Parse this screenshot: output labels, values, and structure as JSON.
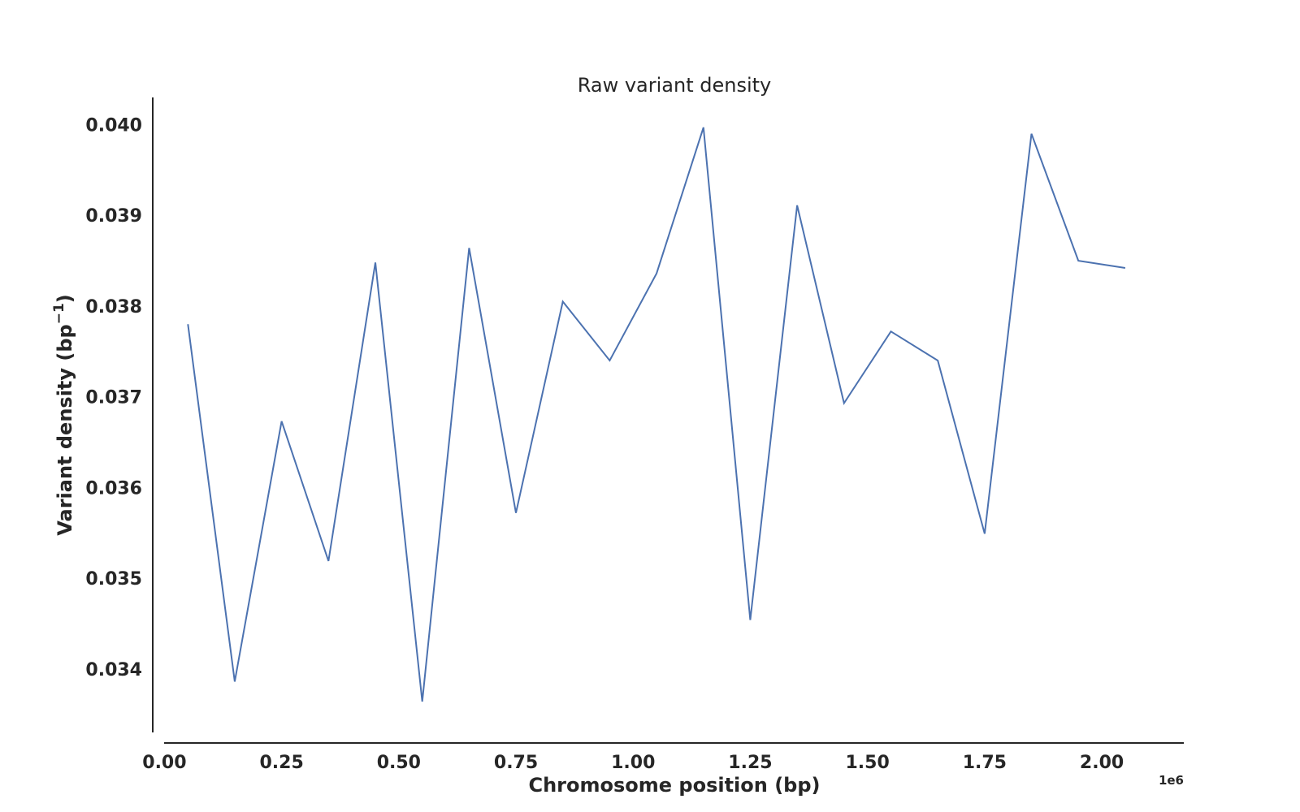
{
  "chart_data": {
    "type": "line",
    "title": "Raw variant density",
    "xlabel": "Chromosome position (bp)",
    "ylabel_main": "Variant density (bp",
    "ylabel_sup": "−1",
    "ylabel_close": ")",
    "x_offset_label": "1e6",
    "xlim": [
      -0.025,
      2.175
    ],
    "ylim": [
      0.0333,
      0.0403
    ],
    "x_ticks": [
      0.0,
      0.25,
      0.5,
      0.75,
      1.0,
      1.25,
      1.5,
      1.75,
      2.0
    ],
    "x_tick_labels": [
      "0.00",
      "0.25",
      "0.50",
      "0.75",
      "1.00",
      "1.25",
      "1.50",
      "1.75",
      "2.00"
    ],
    "y_ticks": [
      0.034,
      0.035,
      0.036,
      0.037,
      0.038,
      0.039,
      0.04
    ],
    "y_tick_labels": [
      "0.034",
      "0.035",
      "0.036",
      "0.037",
      "0.038",
      "0.039",
      "0.040"
    ],
    "grid": false,
    "series": [
      {
        "color": "#4c72b0",
        "x": [
          0.05,
          0.15,
          0.25,
          0.35,
          0.45,
          0.55,
          0.65,
          0.75,
          0.85,
          0.95,
          1.05,
          1.15,
          1.25,
          1.35,
          1.45,
          1.55,
          1.65,
          1.75,
          1.85,
          1.95,
          2.05
        ],
        "y": [
          0.0378,
          0.03386,
          0.03673,
          0.03519,
          0.03848,
          0.03364,
          0.03864,
          0.03572,
          0.03805,
          0.0374,
          0.03836,
          0.03997,
          0.03454,
          0.03911,
          0.03693,
          0.03772,
          0.0374,
          0.03549,
          0.0399,
          0.0385,
          0.03842
        ]
      }
    ]
  }
}
